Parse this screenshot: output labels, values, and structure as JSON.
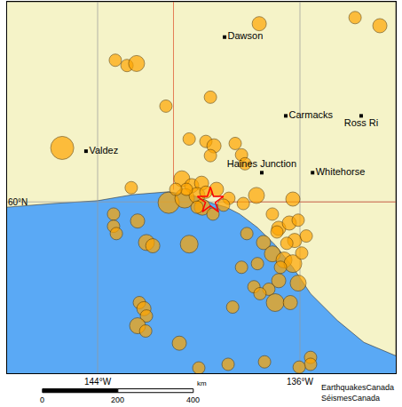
{
  "chart_data": {
    "type": "map",
    "xlim": [
      -147.58,
      -132.21
    ],
    "ylim": [
      55.78,
      64.93
    ],
    "xticks": [
      {
        "value": -144,
        "label": "144°W"
      },
      {
        "value": -136,
        "label": "136°W"
      }
    ],
    "yticks": [
      {
        "value": 60,
        "label": "60°N"
      }
    ],
    "grid": true,
    "tick_labels": true,
    "sea_color": "#5aa9f5",
    "land": {
      "color": "#f5f3c8",
      "coastline": [
        [
          -147.58,
          64.93
        ],
        [
          -132.21,
          64.93
        ],
        [
          -132.21,
          56.21
        ],
        [
          -133.47,
          56.54
        ],
        [
          -134.52,
          57.08
        ],
        [
          -135.58,
          57.74
        ],
        [
          -136.28,
          58.39
        ],
        [
          -136.98,
          58.94
        ],
        [
          -137.68,
          59.37
        ],
        [
          -138.38,
          59.7
        ],
        [
          -138.91,
          59.87
        ],
        [
          -139.44,
          59.96
        ],
        [
          -140.14,
          60.14
        ],
        [
          -141.19,
          60.25
        ],
        [
          -142.6,
          60.18
        ],
        [
          -144.0,
          60.03
        ],
        [
          -145.76,
          59.96
        ],
        [
          -147.58,
          59.87
        ]
      ]
    },
    "borders": {
      "color": "#e0603a",
      "lines": [
        [
          [
            -141.0,
            64.93
          ],
          [
            -141.0,
            60.3
          ]
        ],
        [
          [
            -139.0,
            60.0
          ],
          [
            -132.21,
            60.0
          ]
        ]
      ]
    },
    "cities": {
      "color": "#000000",
      "marker": "square",
      "names": [
        "Dawson",
        "Valdez",
        "Carmacks",
        "Ross Ri",
        "Haines Junction",
        "Whitehorse"
      ],
      "x": [
        -138.98,
        -144.46,
        -136.56,
        -133.58,
        -137.51,
        -135.5
      ],
      "y": [
        64.06,
        61.25,
        62.12,
        62.12,
        60.72,
        60.72
      ]
    },
    "earthquakes": {
      "color": "#ffa500",
      "marker": "circle",
      "x": [
        -137.61,
        -133.82,
        -132.84,
        -143.3,
        -142.84,
        -142.46,
        -141.3,
        -139.54,
        -140.38,
        -139.72,
        -139.4,
        -139.54,
        -138.56,
        -138.31,
        -138.17,
        -145.4,
        -142.67,
        -140.67,
        -140.28,
        -139.89,
        -141.19,
        -140.56,
        -140.07,
        -139.86,
        -139.3,
        -139.72,
        -140.49,
        -140.91,
        -137.72,
        -138.24,
        -138.81,
        -136.28,
        -143.37,
        -143.37,
        -143.26,
        -142.42,
        -142.07,
        -141.82,
        -140.38,
        -138.1,
        -137.44,
        -136.84,
        -136.42,
        -136.07,
        -137.09,
        -136.63,
        -136.28,
        -136.77,
        -137.68,
        -138.31,
        -136.84,
        -137.23,
        -137.82,
        -137.58,
        -136.07,
        -136.98,
        -136.38,
        -138.66,
        -142.35,
        -142.17,
        -142.07,
        -142.42,
        -142.1,
        -140.77,
        -140.0,
        -138.84,
        -135.58,
        -135.58,
        -136.03,
        -137.4,
        -136.21,
        -135.75,
        -136.91,
        -137.09,
        -136.52,
        -135.93,
        -140.07,
        -139.44,
        -139.02
      ],
      "y": [
        64.39,
        64.54,
        64.34,
        63.49,
        63.36,
        63.41,
        62.36,
        62.58,
        61.55,
        61.49,
        61.38,
        61.14,
        61.44,
        61.16,
        60.94,
        61.33,
        60.35,
        60.57,
        60.4,
        60.46,
        59.98,
        60.09,
        60.16,
        59.87,
        60.31,
        60.24,
        60.31,
        60.31,
        60.16,
        59.96,
        60.09,
        60.07,
        59.7,
        59.4,
        59.22,
        59.53,
        59.0,
        58.92,
        58.96,
        59.22,
        59.0,
        59.35,
        59.48,
        59.55,
        58.72,
        58.57,
        58.48,
        58.39,
        58.48,
        58.39,
        58.06,
        57.85,
        57.91,
        57.74,
        58.0,
        57.52,
        57.52,
        57.41,
        57.52,
        57.37,
        57.19,
        56.95,
        56.82,
        56.52,
        55.91,
        56.0,
        56.17,
        56.0,
        55.93,
        56.06,
        59.05,
        59.16,
        59.26,
        59.7,
        58.98,
        58.74,
        59.87,
        59.7,
        59.92
      ],
      "magnitude": [
        3.5,
        3,
        3.5,
        3,
        3,
        4,
        3,
        3,
        3,
        3,
        3.5,
        3,
        3,
        3,
        3,
        6,
        3,
        4,
        3.5,
        3.5,
        5.5,
        5,
        4,
        4,
        3.5,
        3,
        3,
        3,
        4,
        3,
        3,
        3.5,
        3,
        3,
        3,
        3.5,
        4,
        3.5,
        4.5,
        3,
        3.5,
        3.5,
        3.5,
        3,
        4,
        4,
        4.5,
        3,
        3,
        3,
        3.5,
        3,
        3,
        3,
        4,
        4.5,
        3.5,
        3,
        3,
        3.5,
        3,
        4,
        3,
        3.5,
        3,
        3,
        3,
        3,
        3,
        3,
        3.5,
        3,
        3,
        3,
        3,
        3,
        3,
        3,
        3
      ]
    },
    "epicenter": {
      "x": -139.54,
      "y": 60.03,
      "color": "#ff0000",
      "marker": "star"
    },
    "scale_bar": {
      "ticks": [
        0,
        200,
        400
      ],
      "unit": "km"
    },
    "credit": [
      "EarthquakesCanada",
      "SéismesCanada"
    ]
  }
}
